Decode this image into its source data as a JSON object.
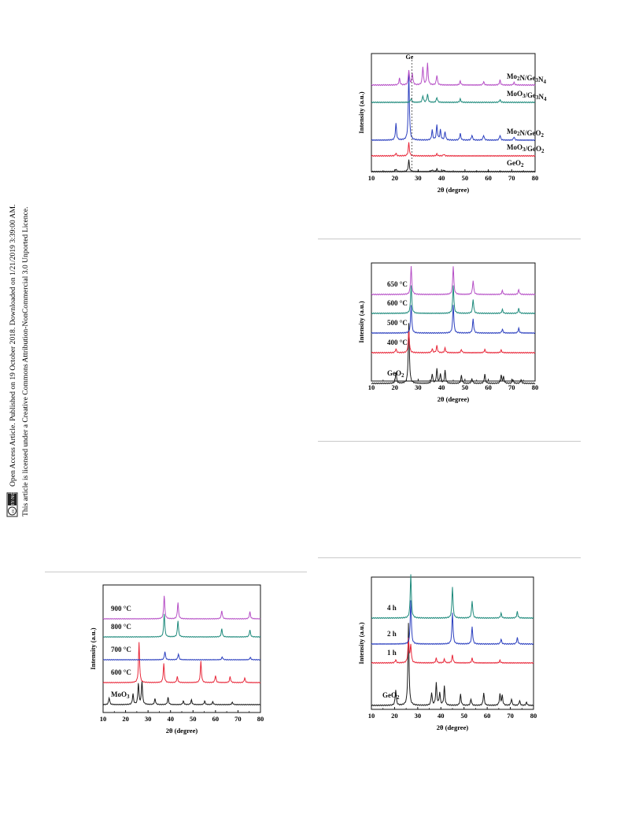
{
  "sidebar": {
    "line1": "Open Access Article. Published on 19 October 2018. Downloaded on 1/21/2019 3:39:00 AM.",
    "line2": "This article is licensed under a Creative Commons Attribution-NonCommercial 3.0 Unported Licence.",
    "badge_cc": "cc",
    "badge_text": "BY-NC"
  },
  "colors": {
    "black": "#1a1a1a",
    "red": "#e8283a",
    "blue": "#2b3fbf",
    "teal": "#1e8a7c",
    "magenta": "#b64fc6"
  },
  "chart_data": [
    {
      "type": "line",
      "xlabel": "2θ (degree)",
      "ylabel": "Intensity (a.u.)",
      "xlim": [
        10,
        80
      ],
      "xticks": [
        10,
        20,
        30,
        40,
        50,
        60,
        70,
        80
      ],
      "annotation": "Ge",
      "reference_line_x": 27.3,
      "series": [
        {
          "name": "GeO2",
          "color": "black",
          "peaks": [
            [
              26,
              0.35
            ],
            [
              20.5,
              0.08
            ],
            [
              36,
              0.06
            ],
            [
              38,
              0.08
            ],
            [
              41,
              0.05
            ]
          ]
        },
        {
          "name": "MoO3/GeO2",
          "color": "red",
          "peaks": [
            [
              26,
              0.4
            ],
            [
              20.5,
              0.08
            ],
            [
              38,
              0.06
            ],
            [
              41,
              0.05
            ]
          ]
        },
        {
          "name": "Mo2N/GeO2",
          "color": "blue",
          "peaks": [
            [
              26,
              2.0
            ],
            [
              20.5,
              0.5
            ],
            [
              36,
              0.3
            ],
            [
              38,
              0.45
            ],
            [
              39.5,
              0.3
            ],
            [
              41.5,
              0.25
            ],
            [
              48,
              0.2
            ],
            [
              53,
              0.15
            ],
            [
              58,
              0.15
            ],
            [
              65,
              0.15
            ],
            [
              71,
              0.1
            ]
          ]
        },
        {
          "name": "MoO3/Ge3N4",
          "color": "teal",
          "peaks": [
            [
              27,
              0.12
            ],
            [
              32,
              0.2
            ],
            [
              34,
              0.25
            ],
            [
              38,
              0.15
            ],
            [
              48,
              0.1
            ],
            [
              65,
              0.08
            ]
          ]
        },
        {
          "name": "Mo2N/Ge3N4",
          "color": "magenta",
          "peaks": [
            [
              22,
              0.2
            ],
            [
              26,
              0.45
            ],
            [
              27.5,
              0.35
            ],
            [
              32,
              0.55
            ],
            [
              34,
              0.65
            ],
            [
              38,
              0.3
            ],
            [
              48,
              0.12
            ],
            [
              58,
              0.1
            ],
            [
              65,
              0.15
            ],
            [
              71,
              0.08
            ]
          ]
        }
      ]
    },
    {
      "type": "line",
      "xlabel": "2θ (degree)",
      "ylabel": "Intensity (a.u.)",
      "xlim": [
        10,
        80
      ],
      "xticks": [
        10,
        20,
        30,
        40,
        50,
        60,
        70,
        80
      ],
      "series": [
        {
          "name": "GeO2",
          "color": "black",
          "peaks": [
            [
              26,
              1.9
            ],
            [
              20.5,
              0.35
            ],
            [
              36,
              0.3
            ],
            [
              38,
              0.45
            ],
            [
              39.5,
              0.3
            ],
            [
              41.5,
              0.4
            ],
            [
              48.5,
              0.25
            ],
            [
              53,
              0.15
            ],
            [
              58.5,
              0.3
            ],
            [
              65.5,
              0.25
            ],
            [
              66.5,
              0.2
            ],
            [
              70.5,
              0.12
            ],
            [
              74,
              0.12
            ]
          ]
        },
        {
          "name": "400 °C",
          "color": "red",
          "peaks": [
            [
              26,
              0.7
            ],
            [
              20.5,
              0.12
            ],
            [
              36,
              0.12
            ],
            [
              38,
              0.22
            ],
            [
              41.5,
              0.15
            ],
            [
              48.5,
              0.1
            ],
            [
              58.5,
              0.1
            ],
            [
              65.5,
              0.08
            ]
          ]
        },
        {
          "name": "500 °C",
          "color": "blue",
          "peaks": [
            [
              27,
              0.9
            ],
            [
              45,
              0.9
            ],
            [
              53.5,
              0.45
            ],
            [
              66,
              0.12
            ],
            [
              73,
              0.15
            ]
          ]
        },
        {
          "name": "600 °C",
          "color": "teal",
          "peaks": [
            [
              27,
              0.9
            ],
            [
              45,
              0.9
            ],
            [
              53.5,
              0.45
            ],
            [
              66,
              0.12
            ],
            [
              73,
              0.15
            ]
          ]
        },
        {
          "name": "650 °C",
          "color": "magenta",
          "peaks": [
            [
              27,
              0.9
            ],
            [
              45,
              0.9
            ],
            [
              53.5,
              0.45
            ],
            [
              66,
              0.12
            ],
            [
              73,
              0.15
            ]
          ]
        }
      ]
    },
    {
      "type": "line",
      "xlabel": "2θ (degree)",
      "ylabel": "Intensity (a.u.)",
      "xlim": [
        10,
        80
      ],
      "xticks": [
        10,
        20,
        30,
        40,
        50,
        60,
        70,
        80
      ],
      "series": [
        {
          "name": "MoO3",
          "color": "black",
          "peaks": [
            [
              12.7,
              0.3
            ],
            [
              23.3,
              0.45
            ],
            [
              25.7,
              0.9
            ],
            [
              27.3,
              1.0
            ],
            [
              33.1,
              0.25
            ],
            [
              38.9,
              0.3
            ],
            [
              45.7,
              0.15
            ],
            [
              49.3,
              0.2
            ],
            [
              55.2,
              0.15
            ],
            [
              58.8,
              0.12
            ],
            [
              67.5,
              0.1
            ]
          ]
        },
        {
          "name": "600 °C",
          "color": "red",
          "peaks": [
            [
              26,
              1.7
            ],
            [
              37,
              0.8
            ],
            [
              43,
              0.25
            ],
            [
              53.5,
              0.9
            ],
            [
              60,
              0.3
            ],
            [
              66.5,
              0.25
            ],
            [
              73,
              0.2
            ]
          ]
        },
        {
          "name": "700 °C",
          "color": "blue",
          "peaks": [
            [
              37.5,
              0.35
            ],
            [
              43.5,
              0.25
            ],
            [
              63,
              0.12
            ],
            [
              75.5,
              0.1
            ]
          ]
        },
        {
          "name": "800 °C",
          "color": "teal",
          "peaks": [
            [
              37.2,
              1.0
            ],
            [
              43.3,
              0.7
            ],
            [
              62.8,
              0.35
            ],
            [
              75.3,
              0.3
            ]
          ]
        },
        {
          "name": "900 °C",
          "color": "magenta",
          "peaks": [
            [
              37.2,
              1.0
            ],
            [
              43.3,
              0.7
            ],
            [
              62.8,
              0.35
            ],
            [
              75.3,
              0.3
            ]
          ]
        }
      ]
    },
    {
      "type": "line",
      "xlabel": "2θ (degree)",
      "ylabel": "Intensity (a.u.)",
      "xlim": [
        10,
        80
      ],
      "xticks": [
        10,
        20,
        30,
        40,
        50,
        60,
        70,
        80
      ],
      "series": [
        {
          "name": "GeO2",
          "color": "black",
          "peaks": [
            [
              26,
              2.6
            ],
            [
              20.5,
              0.5
            ],
            [
              36,
              0.4
            ],
            [
              38,
              0.7
            ],
            [
              39.5,
              0.4
            ],
            [
              41.5,
              0.6
            ],
            [
              48.5,
              0.35
            ],
            [
              53,
              0.2
            ],
            [
              58.5,
              0.4
            ],
            [
              65.5,
              0.35
            ],
            [
              66.5,
              0.3
            ],
            [
              70.5,
              0.2
            ],
            [
              74,
              0.15
            ],
            [
              77,
              0.1
            ]
          ]
        },
        {
          "name": "1 h",
          "color": "red",
          "peaks": [
            [
              26,
              0.75
            ],
            [
              27,
              0.55
            ],
            [
              20.5,
              0.1
            ],
            [
              38,
              0.15
            ],
            [
              41.5,
              0.12
            ],
            [
              45,
              0.25
            ],
            [
              53.5,
              0.15
            ],
            [
              65.5,
              0.08
            ]
          ]
        },
        {
          "name": "2 h",
          "color": "blue",
          "peaks": [
            [
              27,
              1.4
            ],
            [
              45,
              1.0
            ],
            [
              53.5,
              0.55
            ],
            [
              66,
              0.15
            ],
            [
              73,
              0.2
            ]
          ]
        },
        {
          "name": "4 h",
          "color": "teal",
          "peaks": [
            [
              27,
              1.4
            ],
            [
              45,
              1.0
            ],
            [
              53.5,
              0.55
            ],
            [
              66,
              0.15
            ],
            [
              73,
              0.2
            ]
          ]
        }
      ]
    }
  ]
}
